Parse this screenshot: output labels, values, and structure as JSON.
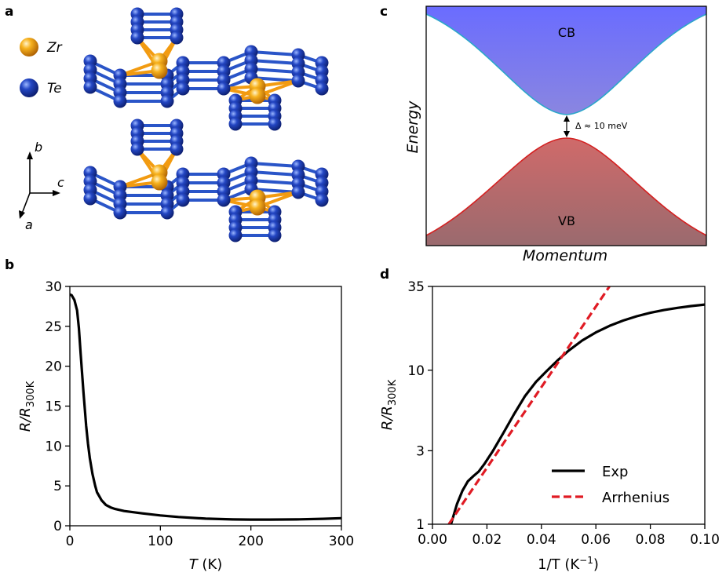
{
  "panel_labels": {
    "a": "a",
    "b": "b",
    "c": "c",
    "d": "d"
  },
  "panel_a": {
    "legend": [
      {
        "label": "Zr",
        "color": "#f29b11"
      },
      {
        "label": "Te",
        "color": "#1e3faa"
      }
    ],
    "axes": {
      "b": "b",
      "c": "c",
      "a": "a"
    },
    "bond_color": "#2a55c8"
  },
  "panel_c": {
    "cb_label": "CB",
    "vb_label": "VB",
    "gap_label": "Δ ≈ 10 meV",
    "xlabel": "Momentum",
    "ylabel": "Energy",
    "cb_color": "#7478ff",
    "vb_color": "#c96868"
  },
  "chart_data": [
    {
      "id": "panel-b",
      "type": "line",
      "title": "",
      "xlabel_main": "T",
      "xlabel_unit": " (K)",
      "ylabel_main": "R/R",
      "ylabel_sub": "300K",
      "xlim": [
        0,
        300
      ],
      "ylim": [
        0,
        30
      ],
      "xticks": [
        0,
        100,
        200,
        300
      ],
      "yticks": [
        0,
        5,
        10,
        15,
        20,
        25,
        30
      ],
      "series": [
        {
          "name": "R/R300K",
          "color": "#000000",
          "x": [
            0,
            2,
            5,
            8,
            10,
            12,
            15,
            18,
            20,
            22,
            25,
            28,
            30,
            35,
            40,
            45,
            50,
            60,
            70,
            80,
            100,
            120,
            150,
            180,
            200,
            220,
            250,
            280,
            300
          ],
          "y": [
            29.0,
            28.9,
            28.3,
            27.0,
            24.8,
            21.5,
            16.8,
            12.5,
            10.3,
            8.5,
            6.5,
            5.0,
            4.2,
            3.2,
            2.6,
            2.3,
            2.1,
            1.85,
            1.7,
            1.55,
            1.3,
            1.1,
            0.9,
            0.8,
            0.78,
            0.78,
            0.8,
            0.88,
            0.95
          ]
        }
      ]
    },
    {
      "id": "panel-d",
      "type": "line",
      "title": "",
      "xlabel": "1/T (K",
      "xlabel_sup": "−1",
      "xlabel_end": ")",
      "ylabel_main": "R/R",
      "ylabel_sub": "300K",
      "yscale": "log",
      "xlim": [
        0.0,
        0.1
      ],
      "ylim": [
        1,
        35
      ],
      "xticks": [
        0.0,
        0.02,
        0.04,
        0.06,
        0.08,
        0.1
      ],
      "xtick_labels": [
        "0.00",
        "0.02",
        "0.04",
        "0.06",
        "0.08",
        "0.10"
      ],
      "yticks": [
        1,
        3,
        10,
        35
      ],
      "ytick_labels": [
        "1",
        "3",
        "10",
        "35"
      ],
      "legend_position": "lower-right",
      "series": [
        {
          "name": "Exp",
          "color": "#000000",
          "style": "solid",
          "x": [
            0.0068,
            0.0075,
            0.009,
            0.011,
            0.013,
            0.015,
            0.017,
            0.019,
            0.022,
            0.026,
            0.03,
            0.034,
            0.038,
            0.042,
            0.046,
            0.05,
            0.055,
            0.06,
            0.065,
            0.07,
            0.075,
            0.08,
            0.085,
            0.09,
            0.095,
            0.1
          ],
          "y": [
            1.0,
            1.1,
            1.35,
            1.65,
            1.9,
            2.05,
            2.2,
            2.45,
            2.95,
            3.9,
            5.2,
            6.8,
            8.4,
            9.9,
            11.6,
            13.4,
            15.6,
            17.6,
            19.4,
            21.0,
            22.4,
            23.6,
            24.6,
            25.4,
            26.1,
            26.7
          ]
        },
        {
          "name": "Arrhenius",
          "color": "#e01b24",
          "style": "dashed",
          "x": [
            0.006,
            0.065
          ],
          "y": [
            1.0,
            35.0
          ]
        }
      ]
    }
  ]
}
